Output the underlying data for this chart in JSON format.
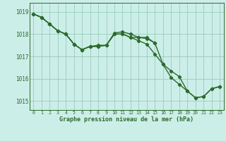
{
  "xlabel": "Graphe pression niveau de la mer (hPa)",
  "ylim": [
    1014.6,
    1019.4
  ],
  "yticks": [
    1015,
    1016,
    1017,
    1018,
    1019
  ],
  "xticks": [
    0,
    1,
    2,
    3,
    4,
    5,
    6,
    7,
    8,
    9,
    10,
    11,
    12,
    13,
    14,
    15,
    16,
    17,
    18,
    19,
    20,
    21,
    22,
    23
  ],
  "line_color": "#2d6a2d",
  "bg_color": "#cceee8",
  "grid_color": "#99ccbb",
  "marker": "D",
  "marker_size": 2.2,
  "line_width": 1.0,
  "series1_x": [
    0,
    1,
    2,
    3,
    4,
    5,
    6,
    7,
    8,
    9,
    10,
    11,
    12,
    13,
    14,
    15,
    16,
    17,
    18,
    19,
    20,
    21,
    22,
    23
  ],
  "series1_y": [
    1018.9,
    1018.75,
    1018.45,
    1018.15,
    1018.0,
    1017.55,
    1017.3,
    1017.45,
    1017.45,
    1017.5,
    1018.0,
    1018.0,
    1017.85,
    1017.85,
    1017.8,
    1017.6,
    1016.65,
    1016.35,
    1016.1,
    1015.45,
    1015.15,
    1015.2,
    1015.55,
    1015.65
  ],
  "series2_x": [
    0,
    1,
    2,
    3,
    4,
    5,
    6,
    7,
    8,
    9,
    10,
    11,
    12,
    13,
    14,
    15,
    16,
    17,
    18,
    19,
    20,
    21,
    22,
    23
  ],
  "series2_y": [
    1018.9,
    1018.75,
    1018.45,
    1018.15,
    1018.0,
    1017.55,
    1017.3,
    1017.45,
    1017.45,
    1017.5,
    1018.0,
    1018.0,
    1017.85,
    1017.7,
    1017.55,
    1017.1,
    1016.65,
    1016.05,
    1015.75,
    1015.45,
    1015.15,
    1015.2,
    1015.55,
    1015.65
  ],
  "series3_x": [
    0,
    1,
    2,
    3,
    4,
    5,
    6,
    7,
    8,
    9,
    10,
    11,
    12,
    13,
    14,
    15
  ],
  "series3_y": [
    1018.9,
    1018.75,
    1018.45,
    1018.15,
    1018.0,
    1017.55,
    1017.3,
    1017.45,
    1017.5,
    1017.5,
    1018.05,
    1018.1,
    1018.0,
    1017.85,
    1017.85,
    1017.6
  ]
}
